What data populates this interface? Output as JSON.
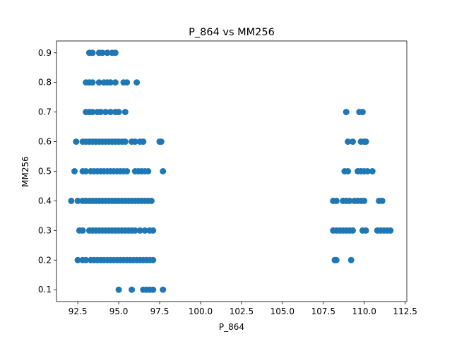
{
  "chart_data": {
    "type": "scatter",
    "title": "P_864 vs MM256",
    "xlabel": "P_864",
    "ylabel": "MM256",
    "xlim": [
      91.2,
      112.6
    ],
    "ylim": [
      0.06,
      0.94
    ],
    "xticks": [
      92.5,
      95.0,
      97.5,
      100.0,
      102.5,
      105.0,
      107.5,
      110.0,
      112.5
    ],
    "xtick_labels": [
      "92.5",
      "95.0",
      "97.5",
      "100.0",
      "102.5",
      "105.0",
      "107.5",
      "110.0",
      "112.5"
    ],
    "yticks": [
      0.1,
      0.2,
      0.3,
      0.4,
      0.5,
      0.6,
      0.7,
      0.8,
      0.9
    ],
    "ytick_labels": [
      "0.1",
      "0.2",
      "0.3",
      "0.4",
      "0.5",
      "0.6",
      "0.7",
      "0.8",
      "0.9"
    ],
    "grid": false,
    "marker_color": "#1f77b4",
    "series": [
      {
        "x": [
          93.2,
          93.4,
          93.8,
          94.0,
          94.3,
          94.6,
          94.8,
          93.0,
          93.2,
          93.4,
          93.8,
          94.1,
          94.3,
          94.5,
          94.8,
          95.3,
          95.5,
          96.1,
          93.0,
          93.2,
          93.4,
          93.7,
          93.9,
          94.2,
          94.5,
          94.8,
          95.0,
          95.4,
          92.4,
          92.8,
          93.0,
          93.2,
          93.4,
          93.6,
          93.8,
          94.0,
          94.2,
          94.4,
          94.6,
          94.8,
          95.0,
          95.2,
          95.4,
          95.8,
          96.0,
          96.3,
          96.5,
          97.5,
          97.6,
          92.3,
          92.8,
          93.0,
          93.3,
          93.5,
          93.7,
          93.9,
          94.1,
          94.3,
          94.5,
          94.7,
          94.9,
          95.1,
          95.3,
          95.5,
          96.0,
          96.2,
          96.4,
          96.6,
          96.8,
          97.7,
          92.1,
          92.5,
          92.8,
          93.0,
          93.2,
          93.4,
          93.6,
          93.8,
          94.0,
          94.2,
          94.4,
          94.6,
          94.8,
          95.0,
          95.2,
          95.4,
          95.6,
          95.8,
          96.0,
          96.2,
          96.4,
          96.6,
          96.8,
          97.0,
          92.6,
          92.8,
          93.2,
          93.4,
          93.6,
          93.8,
          94.0,
          94.2,
          94.4,
          94.6,
          94.8,
          95.0,
          95.2,
          95.4,
          95.6,
          95.8,
          96.0,
          96.3,
          96.6,
          96.9,
          97.1,
          92.5,
          92.8,
          93.0,
          93.3,
          93.5,
          93.7,
          93.9,
          94.1,
          94.3,
          94.5,
          94.7,
          94.9,
          95.1,
          95.3,
          95.5,
          95.7,
          95.9,
          96.1,
          96.3,
          96.5,
          96.7,
          96.9,
          97.1,
          95.0,
          95.8,
          96.5,
          96.7,
          96.9,
          97.1,
          97.7,
          108.9,
          109.7,
          109.9,
          109.0,
          109.3,
          109.8,
          110.0,
          110.1,
          108.8,
          109.0,
          109.6,
          109.8,
          110.0,
          110.2,
          110.5,
          108.1,
          108.3,
          108.7,
          108.9,
          109.1,
          109.4,
          109.6,
          109.8,
          110.0,
          110.9,
          111.1,
          108.1,
          108.3,
          108.5,
          108.7,
          108.9,
          109.1,
          109.3,
          109.9,
          110.1,
          110.8,
          111.0,
          111.2,
          111.4,
          111.6,
          108.2,
          108.3,
          109.2
        ],
        "y": [
          0.9,
          0.9,
          0.9,
          0.9,
          0.9,
          0.9,
          0.9,
          0.8,
          0.8,
          0.8,
          0.8,
          0.8,
          0.8,
          0.8,
          0.8,
          0.8,
          0.8,
          0.8,
          0.7,
          0.7,
          0.7,
          0.7,
          0.7,
          0.7,
          0.7,
          0.7,
          0.7,
          0.7,
          0.6,
          0.6,
          0.6,
          0.6,
          0.6,
          0.6,
          0.6,
          0.6,
          0.6,
          0.6,
          0.6,
          0.6,
          0.6,
          0.6,
          0.6,
          0.6,
          0.6,
          0.6,
          0.6,
          0.6,
          0.6,
          0.5,
          0.5,
          0.5,
          0.5,
          0.5,
          0.5,
          0.5,
          0.5,
          0.5,
          0.5,
          0.5,
          0.5,
          0.5,
          0.5,
          0.5,
          0.5,
          0.5,
          0.5,
          0.5,
          0.5,
          0.5,
          0.4,
          0.4,
          0.4,
          0.4,
          0.4,
          0.4,
          0.4,
          0.4,
          0.4,
          0.4,
          0.4,
          0.4,
          0.4,
          0.4,
          0.4,
          0.4,
          0.4,
          0.4,
          0.4,
          0.4,
          0.4,
          0.4,
          0.4,
          0.4,
          0.3,
          0.3,
          0.3,
          0.3,
          0.3,
          0.3,
          0.3,
          0.3,
          0.3,
          0.3,
          0.3,
          0.3,
          0.3,
          0.3,
          0.3,
          0.3,
          0.3,
          0.3,
          0.3,
          0.3,
          0.3,
          0.2,
          0.2,
          0.2,
          0.2,
          0.2,
          0.2,
          0.2,
          0.2,
          0.2,
          0.2,
          0.2,
          0.2,
          0.2,
          0.2,
          0.2,
          0.2,
          0.2,
          0.2,
          0.2,
          0.2,
          0.2,
          0.2,
          0.2,
          0.1,
          0.1,
          0.1,
          0.1,
          0.1,
          0.1,
          0.1,
          0.7,
          0.7,
          0.7,
          0.6,
          0.6,
          0.6,
          0.6,
          0.6,
          0.5,
          0.5,
          0.5,
          0.5,
          0.5,
          0.5,
          0.5,
          0.4,
          0.4,
          0.4,
          0.4,
          0.4,
          0.4,
          0.4,
          0.4,
          0.4,
          0.4,
          0.4,
          0.3,
          0.3,
          0.3,
          0.3,
          0.3,
          0.3,
          0.3,
          0.3,
          0.3,
          0.3,
          0.3,
          0.3,
          0.3,
          0.3,
          0.2,
          0.2,
          0.2
        ]
      }
    ]
  }
}
